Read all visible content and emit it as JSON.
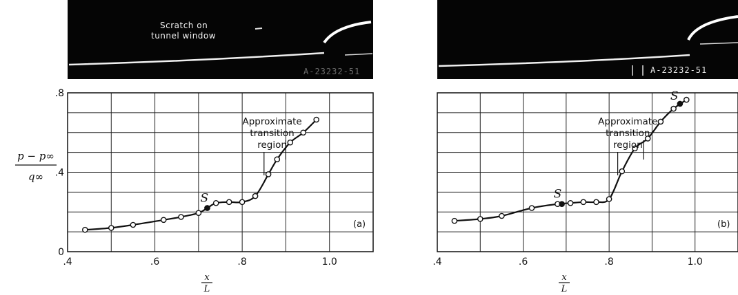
{
  "figure": {
    "ylabel_num": "p − p∞",
    "ylabel_den": "q∞",
    "xlabel_num": "x",
    "xlabel_den": "L"
  },
  "photos": [
    {
      "caption_line1": "Scratch on",
      "caption_line2": "tunnel window",
      "code": "A-23232-51"
    },
    {
      "code": "A-23232-51"
    }
  ],
  "chart_data": [
    {
      "type": "line",
      "panel_label": "(a)",
      "xlim": [
        0.4,
        1.1
      ],
      "ylim": [
        0,
        0.8
      ],
      "x_ticks": [
        0.4,
        0.6,
        0.8,
        1.0
      ],
      "x_tick_labels": [
        ".4",
        ".6",
        ".8",
        "1.0"
      ],
      "y_ticks": [
        0,
        0.4,
        0.8
      ],
      "y_tick_labels": [
        "0",
        ".4",
        ".8"
      ],
      "grid": true,
      "points": [
        [
          0.44,
          0.11
        ],
        [
          0.5,
          0.12
        ],
        [
          0.55,
          0.135
        ],
        [
          0.62,
          0.16
        ],
        [
          0.66,
          0.175
        ],
        [
          0.7,
          0.195
        ],
        [
          0.72,
          0.22
        ],
        [
          0.74,
          0.245
        ],
        [
          0.77,
          0.25
        ],
        [
          0.8,
          0.25
        ],
        [
          0.83,
          0.28
        ],
        [
          0.86,
          0.39
        ],
        [
          0.88,
          0.465
        ],
        [
          0.91,
          0.55
        ],
        [
          0.94,
          0.6
        ],
        [
          0.97,
          0.665
        ]
      ],
      "separation": {
        "label": "S",
        "x": 0.72,
        "y": 0.22
      },
      "annotation": {
        "lines": [
          "Approximate",
          "transition",
          "region"
        ],
        "x_range": [
          0.85,
          0.9
        ]
      }
    },
    {
      "type": "line",
      "panel_label": "(b)",
      "xlim": [
        0.4,
        1.1
      ],
      "ylim": [
        0,
        0.8
      ],
      "x_ticks": [
        0.4,
        0.6,
        0.8,
        1.0
      ],
      "x_tick_labels": [
        ".4",
        ".6",
        ".8",
        "1.0"
      ],
      "grid": true,
      "points": [
        [
          0.44,
          0.155
        ],
        [
          0.5,
          0.165
        ],
        [
          0.55,
          0.18
        ],
        [
          0.62,
          0.22
        ],
        [
          0.68,
          0.24
        ],
        [
          0.71,
          0.245
        ],
        [
          0.74,
          0.25
        ],
        [
          0.77,
          0.25
        ],
        [
          0.8,
          0.265
        ],
        [
          0.83,
          0.405
        ],
        [
          0.86,
          0.52
        ],
        [
          0.89,
          0.57
        ],
        [
          0.92,
          0.655
        ],
        [
          0.95,
          0.72
        ],
        [
          0.98,
          0.765
        ]
      ],
      "separations": [
        {
          "label": "S",
          "x": 0.69,
          "y": 0.24
        },
        {
          "label": "S",
          "x": 0.965,
          "y": 0.745
        }
      ],
      "annotation": {
        "lines": [
          "Approximate",
          "transition",
          "region"
        ],
        "x_range": [
          0.82,
          0.88
        ]
      }
    }
  ]
}
